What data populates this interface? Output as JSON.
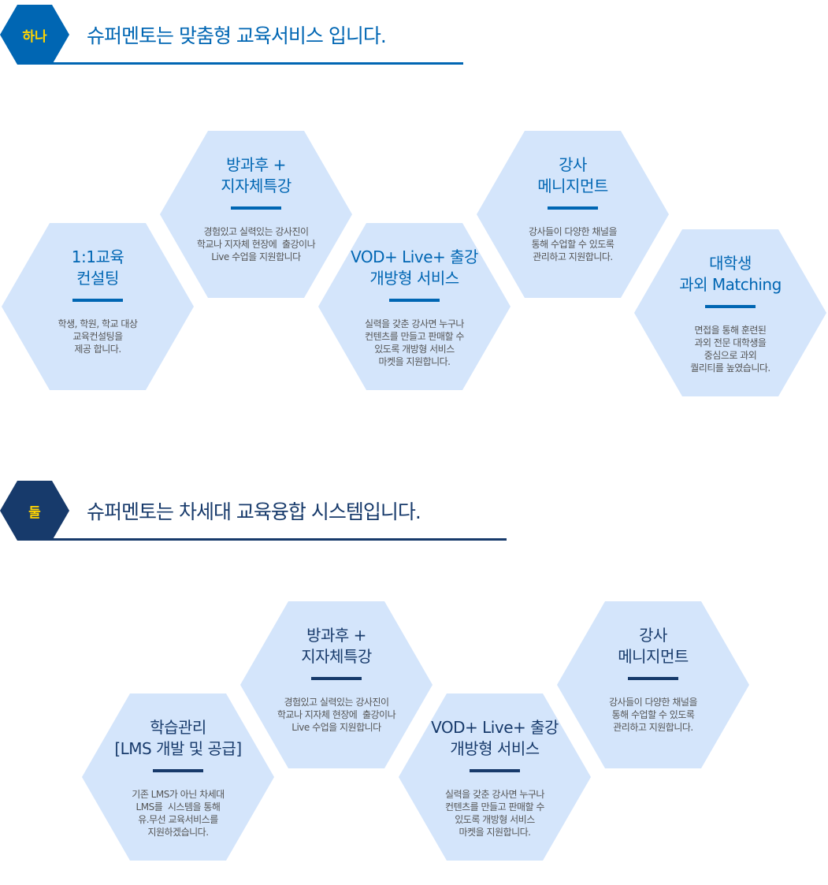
{
  "colors": {
    "section1": "#0066b3",
    "section2": "#173a6b",
    "hex_fill": "#d4e5fb",
    "badge_text": "#ffd400",
    "body_text": "#555555"
  },
  "sections": [
    {
      "badge": "하나",
      "title": "슈퍼멘토는 맞춤형 교육서비스 입니다.",
      "cards": [
        {
          "title": [
            "1:1교육",
            "컨설팅"
          ],
          "desc": [
            "학생, 학원, 학교 대상",
            "교육컨설팅을",
            "제공 합니다."
          ]
        },
        {
          "title": [
            "방과후 +",
            "지자체특강"
          ],
          "desc": [
            "경험있고 실력있는 강사진이",
            "학교나 지자체 현장에  출강이나",
            "Live 수업을 지원합니다"
          ]
        },
        {
          "title": [
            "VOD+ Live+ 출강",
            "개방형 서비스"
          ],
          "desc": [
            "실력을 갖춘 강사면 누구나",
            "컨텐츠를 만들고 판매할 수",
            "있도록 개방형 서비스",
            "마켓을 지원합니다."
          ]
        },
        {
          "title": [
            "강사",
            "메니지먼트"
          ],
          "desc": [
            "강사들이 다양한 채널을",
            "통해 수업할 수 있도록",
            "관리하고 지원합니다."
          ]
        },
        {
          "title": [
            "대학생",
            "과외 Matching"
          ],
          "desc": [
            "면접을 통해 훈련된",
            "과외 전문 대학생을",
            "중심으로 과외",
            "퀄리티를 높였습니다."
          ]
        }
      ]
    },
    {
      "badge": "둘",
      "title": "슈퍼멘토는 차세대 교육융합 시스템입니다.",
      "cards": [
        {
          "title": [
            "학습관리",
            "[LMS 개발 및 공급]"
          ],
          "desc": [
            "기존 LMS가 아닌 차세대",
            "LMS를  시스템을 통해",
            "유.무선 교육서비스를",
            "지원하겠습니다."
          ]
        },
        {
          "title": [
            "방과후 +",
            "지자체특강"
          ],
          "desc": [
            "경험있고 실력있는 강사진이",
            "학교나 지자체 현장에  출강이나",
            "Live 수업을 지원합니다"
          ]
        },
        {
          "title": [
            "VOD+ Live+ 출강",
            "개방형 서비스"
          ],
          "desc": [
            "실력을 갖춘 강사면 누구나",
            "컨텐츠를 만들고 판매할 수",
            "있도록 개방형 서비스",
            "마켓을 지원합니다."
          ]
        },
        {
          "title": [
            "강사",
            "메니지먼트"
          ],
          "desc": [
            "강사들이 다양한 채널을",
            "통해 수업할 수 있도록",
            "관리하고 지원합니다."
          ]
        }
      ]
    }
  ]
}
